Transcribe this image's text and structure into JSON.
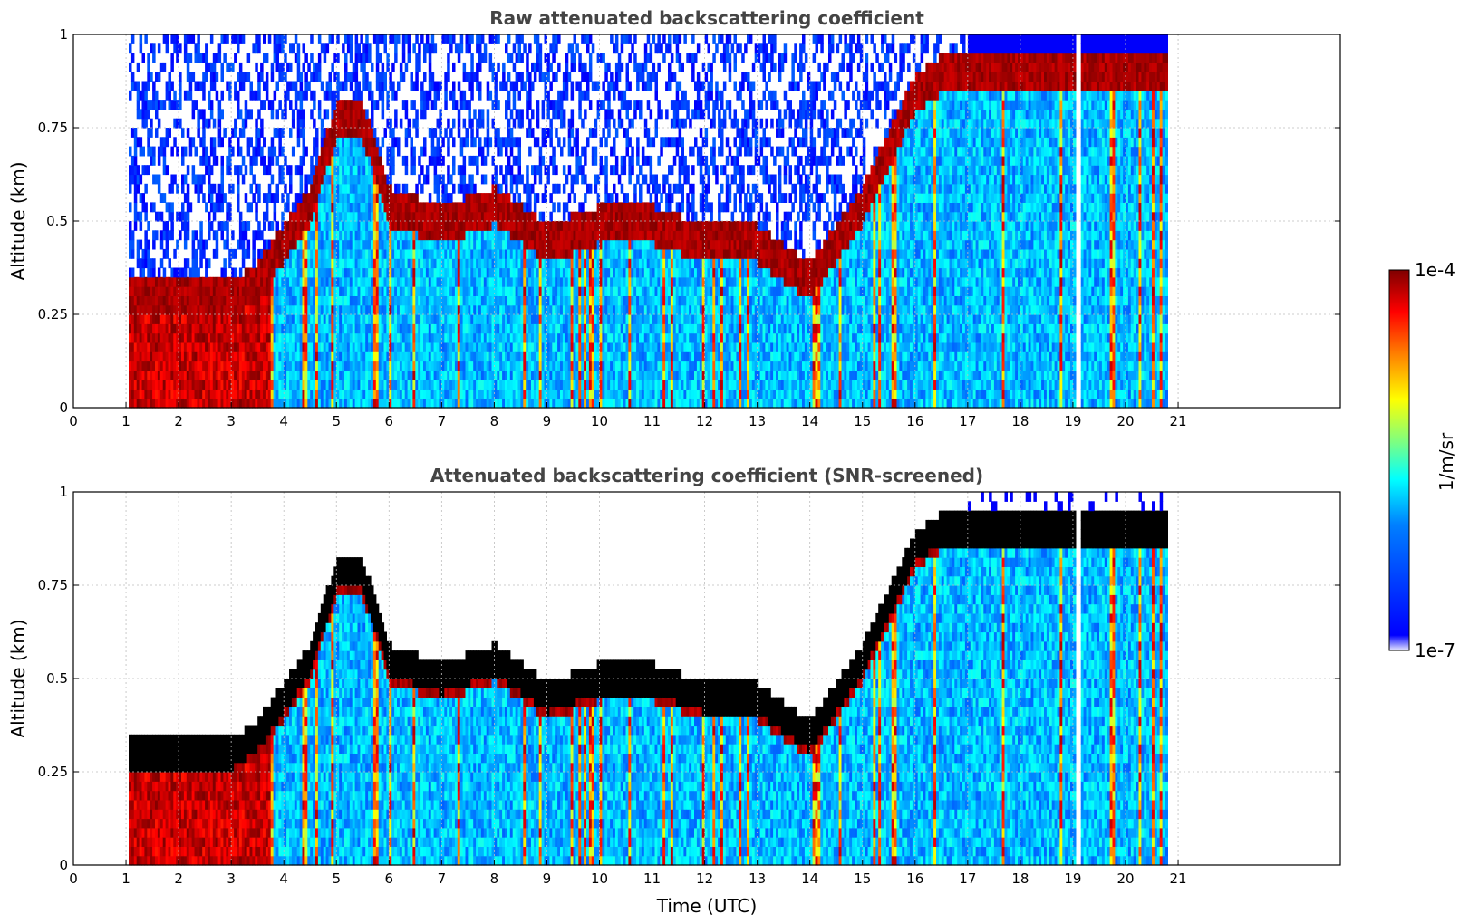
{
  "colors": {
    "jet": [
      "#00007f",
      "#0000ff",
      "#007fff",
      "#00ffff",
      "#7fff7f",
      "#ffff00",
      "#ff7f00",
      "#ff0000",
      "#7f0000"
    ],
    "low_end": "#e8e8ff",
    "screen_black": "#000000",
    "grid": "#bdbdbd",
    "title": "#444444"
  },
  "colorbar": {
    "label": "1/m/sr",
    "max_label": "1e-4",
    "min_label": "1e-7",
    "scale": "log",
    "colormap": "jet"
  },
  "chart_data": [
    {
      "type": "heatmap",
      "title": "Raw attenuated backscattering coefficient",
      "xlabel": "",
      "ylabel": "Altitude (km)",
      "xlim": [
        0,
        24
      ],
      "ylim": [
        0,
        1
      ],
      "x_ticks": [
        "0",
        "1",
        "2",
        "3",
        "4",
        "5",
        "6",
        "7",
        "8",
        "9",
        "10",
        "11",
        "12",
        "13",
        "14",
        "15",
        "16",
        "17",
        "18",
        "19",
        "20",
        "21"
      ],
      "y_ticks": [
        "0",
        "0.25",
        "0.5",
        "0.75",
        "1"
      ],
      "grid": true,
      "data_coverage": [
        1.05,
        20.8
      ],
      "data_gap": [
        19.05,
        19.15
      ],
      "layer_top_km": [
        [
          1.05,
          0.3
        ],
        [
          2.0,
          0.3
        ],
        [
          3.0,
          0.3
        ],
        [
          3.5,
          0.35
        ],
        [
          4.0,
          0.45
        ],
        [
          4.5,
          0.55
        ],
        [
          5.0,
          0.78
        ],
        [
          5.5,
          0.78
        ],
        [
          6.0,
          0.55
        ],
        [
          7.0,
          0.5
        ],
        [
          8.0,
          0.55
        ],
        [
          9.0,
          0.45
        ],
        [
          10.0,
          0.5
        ],
        [
          11.0,
          0.5
        ],
        [
          12.0,
          0.45
        ],
        [
          13.0,
          0.45
        ],
        [
          14.0,
          0.35
        ],
        [
          15.0,
          0.55
        ],
        [
          15.5,
          0.7
        ],
        [
          16.0,
          0.85
        ],
        [
          16.5,
          0.9
        ]
      ]
    },
    {
      "type": "heatmap",
      "title": "Attenuated backscattering coefficient (SNR-screened)",
      "xlabel": "Time (UTC)",
      "ylabel": "Altitude (km)",
      "xlim": [
        0,
        24
      ],
      "ylim": [
        0,
        1
      ],
      "x_ticks": [
        "0",
        "1",
        "2",
        "3",
        "4",
        "5",
        "6",
        "7",
        "8",
        "9",
        "10",
        "11",
        "12",
        "13",
        "14",
        "15",
        "16",
        "17",
        "18",
        "19",
        "20",
        "21"
      ],
      "y_ticks": [
        "0",
        "0.25",
        "0.5",
        "0.75",
        "1"
      ],
      "grid": true,
      "data_coverage": [
        1.05,
        20.8
      ],
      "data_gap": [
        19.05,
        19.15
      ],
      "layer_top_km": [
        [
          1.05,
          0.3
        ],
        [
          2.0,
          0.3
        ],
        [
          3.0,
          0.3
        ],
        [
          3.5,
          0.35
        ],
        [
          4.0,
          0.45
        ],
        [
          4.5,
          0.55
        ],
        [
          5.0,
          0.78
        ],
        [
          5.5,
          0.78
        ],
        [
          6.0,
          0.55
        ],
        [
          7.0,
          0.5
        ],
        [
          8.0,
          0.55
        ],
        [
          9.0,
          0.45
        ],
        [
          10.0,
          0.5
        ],
        [
          11.0,
          0.5
        ],
        [
          12.0,
          0.45
        ],
        [
          13.0,
          0.45
        ],
        [
          14.0,
          0.35
        ],
        [
          15.0,
          0.55
        ],
        [
          15.5,
          0.7
        ],
        [
          16.0,
          0.85
        ],
        [
          16.5,
          0.9
        ]
      ]
    }
  ]
}
